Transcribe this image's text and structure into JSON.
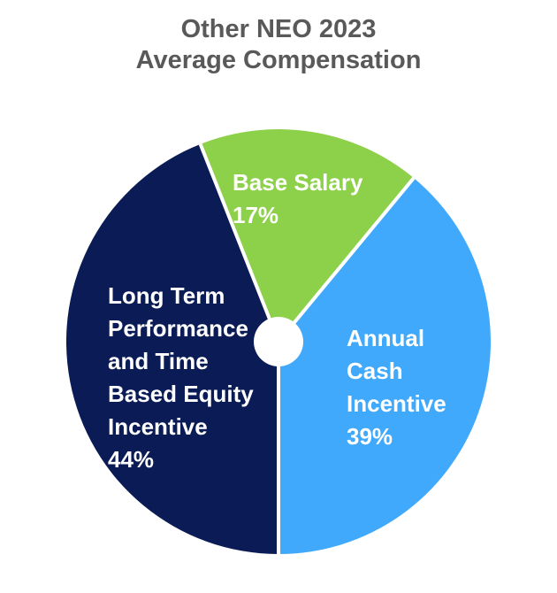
{
  "title": {
    "text": "Other NEO 2023\nAverage Compensation"
  },
  "chart_data": {
    "type": "pie",
    "title": "Other NEO 2023 Average Compensation",
    "title_color": "#595959",
    "label_color": "#ffffff",
    "start_angle_deg": -21.6,
    "direction": "clockwise",
    "hole": true,
    "legend": "none",
    "slices": [
      {
        "label": "Base Salary",
        "value": 17,
        "unit": "%",
        "color": "#8dd04a",
        "display": "Base Salary\n17%"
      },
      {
        "label": "Annual Cash Incentive",
        "value": 39,
        "unit": "%",
        "color": "#41a9fb",
        "display": "Annual\nCash\nIncentive\n39%"
      },
      {
        "label": "Long Term Performance and Time Based Equity Incentive",
        "value": 44,
        "unit": "%",
        "color": "#0a1b55",
        "display": "Long Term\nPerformance\nand Time\nBased Equity\nIncentive\n44%"
      }
    ]
  }
}
